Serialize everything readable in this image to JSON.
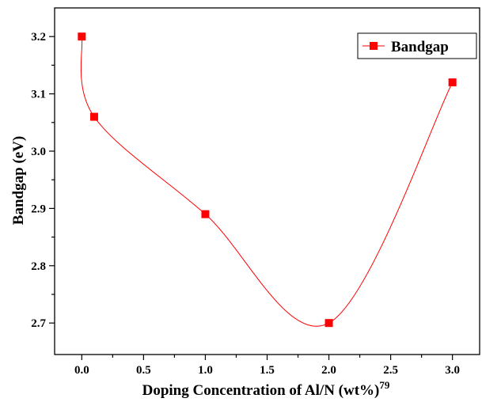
{
  "chart_data": {
    "type": "line",
    "xlabel": "Doping Concentration of Al/N (wt%)",
    "xlabel_superscript": "79",
    "ylabel": "Bandgap (eV)",
    "xlim": [
      -0.22,
      3.22
    ],
    "ylim": [
      2.645,
      3.25
    ],
    "x_ticks": [
      0.0,
      0.5,
      1.0,
      1.5,
      2.0,
      2.5,
      3.0
    ],
    "x_tick_labels": [
      "0.0",
      "0.5",
      "1.0",
      "1.5",
      "2.0",
      "2.5",
      "3.0"
    ],
    "y_ticks": [
      2.7,
      2.8,
      2.9,
      3.0,
      3.1,
      3.2
    ],
    "y_tick_labels": [
      "2.7",
      "2.8",
      "2.9",
      "3.0",
      "3.1",
      "3.2"
    ],
    "grid": false,
    "legend_position": "top-right",
    "smooth": true,
    "series": [
      {
        "name": "Bandgap",
        "color": "#ff0000",
        "marker": "square",
        "x": [
          0.0,
          0.1,
          1.0,
          2.0,
          3.0
        ],
        "y": [
          3.2,
          3.06,
          2.89,
          2.7,
          3.12
        ]
      }
    ]
  }
}
